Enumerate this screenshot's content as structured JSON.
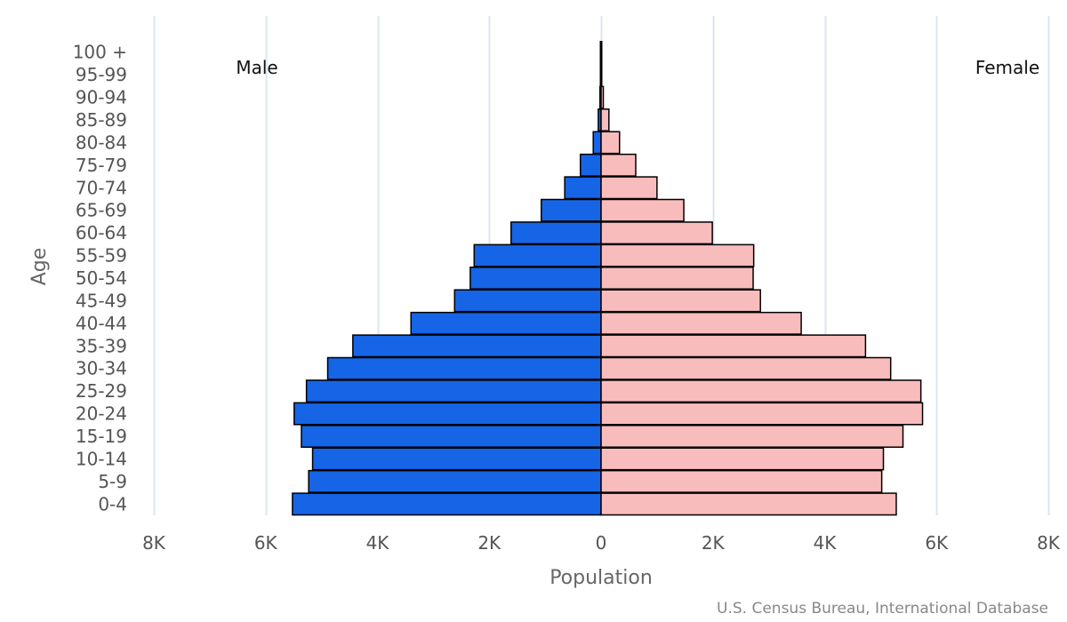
{
  "chart_data": {
    "type": "bar",
    "orientation": "horizontal-population-pyramid",
    "categories": [
      "0-4",
      "5-9",
      "10-14",
      "15-19",
      "20-24",
      "25-29",
      "30-34",
      "35-39",
      "40-44",
      "45-49",
      "50-54",
      "55-59",
      "60-64",
      "65-69",
      "70-74",
      "75-79",
      "80-84",
      "85-89",
      "90-94",
      "95-99",
      "100 +"
    ],
    "series": [
      {
        "name": "Male",
        "color": "#1565e6",
        "values": [
          5520,
          5230,
          5160,
          5360,
          5490,
          5270,
          4890,
          4440,
          3400,
          2620,
          2340,
          2270,
          1610,
          1070,
          650,
          370,
          140,
          50,
          20,
          0,
          0
        ]
      },
      {
        "name": "Female",
        "color": "#f9bcbc",
        "values": [
          5280,
          5020,
          5050,
          5400,
          5750,
          5720,
          5180,
          4730,
          3580,
          2850,
          2720,
          2730,
          1990,
          1480,
          1000,
          620,
          330,
          140,
          40,
          10,
          0
        ]
      }
    ],
    "xlabel": "Population",
    "ylabel": "Age",
    "xlim": [
      -8000,
      8000
    ],
    "x_ticks": [
      -8000,
      -6000,
      -4000,
      -2000,
      0,
      2000,
      4000,
      6000,
      8000
    ],
    "x_tick_labels": [
      "8K",
      "6K",
      "4K",
      "2K",
      "0",
      "2K",
      "4K",
      "6K",
      "8K"
    ],
    "grid": true,
    "bar_outline_color": "#000000",
    "grid_color": "#dde6ef",
    "left_label": "Male",
    "right_label": "Female",
    "credit": "U.S. Census Bureau, International Database"
  }
}
